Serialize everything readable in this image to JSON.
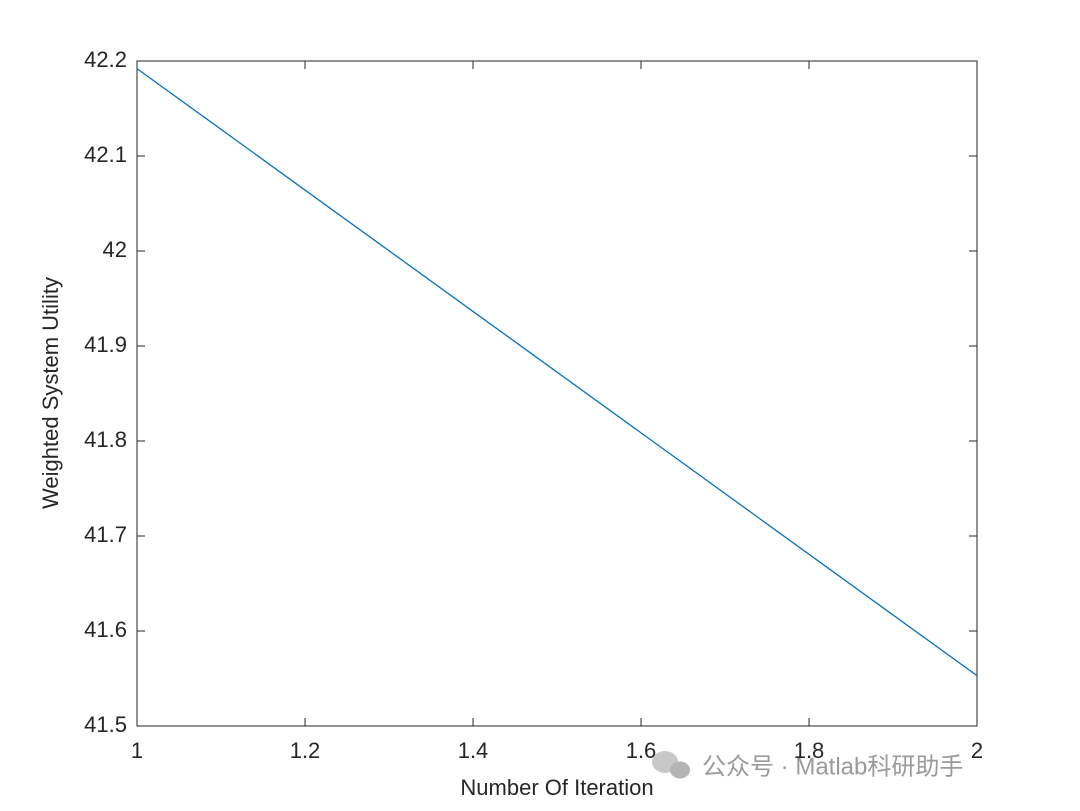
{
  "chart_data": {
    "type": "line",
    "xlabel": "Number Of Iteration",
    "ylabel": "Weighted System Utility",
    "x": [
      1,
      2
    ],
    "series": [
      {
        "name": "Weighted System Utility",
        "color": "#0072bd",
        "values": [
          42.192,
          41.553
        ]
      }
    ],
    "xlim": [
      1,
      2
    ],
    "xticks": [
      1,
      1.2,
      1.4,
      1.6,
      1.8,
      2
    ],
    "ylim": [
      41.5,
      42.2
    ],
    "yticks": [
      41.5,
      41.6,
      41.7,
      41.8,
      41.9,
      42,
      42.1,
      42.2
    ],
    "grid": false,
    "watermark": "公众号 · Matlab科研助手"
  }
}
